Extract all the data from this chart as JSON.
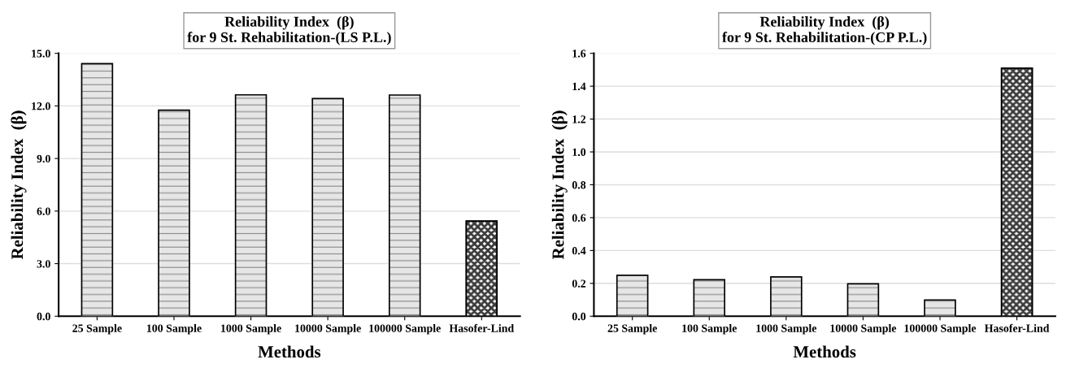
{
  "chart_data": [
    {
      "type": "bar",
      "title": "Reliability Index  (β)\nfor 9 St. Rehabilitation-(LS P.L.)",
      "xlabel": "Methods",
      "ylabel": "Reliability Index  (β)",
      "categories": [
        "25 Sample",
        "100 Sample",
        "1000 Sample",
        "10000 Sample",
        "100000 Sample",
        "Hasofer-Lind"
      ],
      "values": [
        14.41,
        11.76,
        12.63,
        12.42,
        12.62,
        5.43
      ],
      "colors": [
        "#e6e6e6",
        "#e6e6e6",
        "#e6e6e6",
        "#e6e6e6",
        "#e6e6e6",
        "#3a3a3a"
      ],
      "ylim": [
        0,
        15
      ],
      "yticks": [
        {
          "value": 0,
          "label": "0.0"
        },
        {
          "value": 3,
          "label": "3.0"
        },
        {
          "value": 6,
          "label": "6.0"
        },
        {
          "value": 9,
          "label": "9.0"
        },
        {
          "value": 12,
          "label": "12.0"
        },
        {
          "value": 15,
          "label": "15.0"
        }
      ],
      "grid": "y"
    },
    {
      "type": "bar",
      "title": "Reliability Index  (β)\nfor 9 St. Rehabilitation-(CP P.L.)",
      "xlabel": "Methods",
      "ylabel": "Reliability Index  (β)",
      "categories": [
        "25 Sample",
        "100 Sample",
        "1000 Sample",
        "10000 Sample",
        "100000 Sample",
        "Hasofer-Lind"
      ],
      "values": [
        0.249,
        0.222,
        0.239,
        0.197,
        0.099,
        1.51
      ],
      "colors": [
        "#e6e6e6",
        "#e6e6e6",
        "#e6e6e6",
        "#e6e6e6",
        "#e6e6e6",
        "#3a3a3a"
      ],
      "ylim": [
        0,
        1.6
      ],
      "yticks": [
        {
          "value": 0,
          "label": "0.0"
        },
        {
          "value": 0.2,
          "label": "0.2"
        },
        {
          "value": 0.4,
          "label": "0.4"
        },
        {
          "value": 0.6,
          "label": "0.6"
        },
        {
          "value": 0.8,
          "label": "0.8"
        },
        {
          "value": 1.0,
          "label": "1.0"
        },
        {
          "value": 1.2,
          "label": "1.2"
        },
        {
          "value": 1.4,
          "label": "1.4"
        },
        {
          "value": 1.6,
          "label": "1.6"
        }
      ],
      "grid": "y"
    }
  ]
}
